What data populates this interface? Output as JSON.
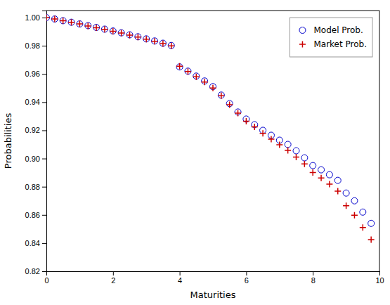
{
  "chart_data": {
    "type": "scatter",
    "xlabel": "Maturities",
    "ylabel": "Probabilities",
    "xlim": [
      0,
      10
    ],
    "ylim": [
      0.82,
      1.005
    ],
    "xticks": [
      0,
      2,
      4,
      6,
      8,
      10
    ],
    "yticks": [
      0.82,
      0.84,
      0.86,
      0.88,
      {
        "value": 0.9,
        "label": "0.90"
      },
      0.92,
      0.94,
      0.96,
      0.98,
      {
        "value": 1.0,
        "label": "1.00"
      }
    ],
    "grid": false,
    "legend": "upper right",
    "series": [
      {
        "name": "Model Prob.",
        "color": "#0000cc",
        "marker": "circle",
        "x": [
          0.0,
          0.25,
          0.5,
          0.75,
          1.0,
          1.25,
          1.5,
          1.75,
          2.0,
          2.25,
          2.5,
          2.75,
          3.0,
          3.25,
          3.5,
          3.75,
          4.0,
          4.25,
          4.5,
          4.75,
          5.0,
          5.25,
          5.5,
          5.75,
          6.0,
          6.25,
          6.5,
          6.75,
          7.0,
          7.25,
          7.5,
          7.75,
          8.0,
          8.25,
          8.5,
          8.75,
          9.0,
          9.25,
          9.5,
          9.75
        ],
        "values": [
          1.0,
          0.999,
          0.9978,
          0.9967,
          0.9955,
          0.9943,
          0.993,
          0.9918,
          0.9905,
          0.9892,
          0.9878,
          0.9864,
          0.9849,
          0.9834,
          0.9818,
          0.9802,
          0.965,
          0.962,
          0.9585,
          0.955,
          0.951,
          0.945,
          0.939,
          0.933,
          0.928,
          0.924,
          0.92,
          0.9165,
          0.913,
          0.91,
          0.9055,
          0.9005,
          0.895,
          0.892,
          0.8885,
          0.8845,
          0.8755,
          0.87,
          0.862,
          0.854
        ]
      },
      {
        "name": "Market Prob.",
        "color": "#cc0000",
        "marker": "plus",
        "x": [
          0.0,
          0.25,
          0.5,
          0.75,
          1.0,
          1.25,
          1.5,
          1.75,
          2.0,
          2.25,
          2.5,
          2.75,
          3.0,
          3.25,
          3.5,
          3.75,
          4.0,
          4.25,
          4.5,
          4.75,
          5.0,
          5.25,
          5.5,
          5.75,
          6.0,
          6.25,
          6.5,
          6.75,
          7.0,
          7.25,
          7.5,
          7.75,
          8.0,
          8.25,
          8.5,
          8.75,
          9.0,
          9.25,
          9.5,
          9.75
        ],
        "values": [
          1.0,
          0.999,
          0.9978,
          0.9967,
          0.9955,
          0.994,
          0.9928,
          0.9916,
          0.9903,
          0.989,
          0.9876,
          0.9862,
          0.9847,
          0.9832,
          0.9816,
          0.98,
          0.9655,
          0.9618,
          0.958,
          0.9542,
          0.95,
          0.9445,
          0.9382,
          0.9322,
          0.9265,
          0.9225,
          0.9178,
          0.9138,
          0.9098,
          0.9058,
          0.901,
          0.8962,
          0.89,
          0.8862,
          0.8818,
          0.8768,
          0.8665,
          0.8598,
          0.851,
          0.8425
        ]
      }
    ]
  }
}
